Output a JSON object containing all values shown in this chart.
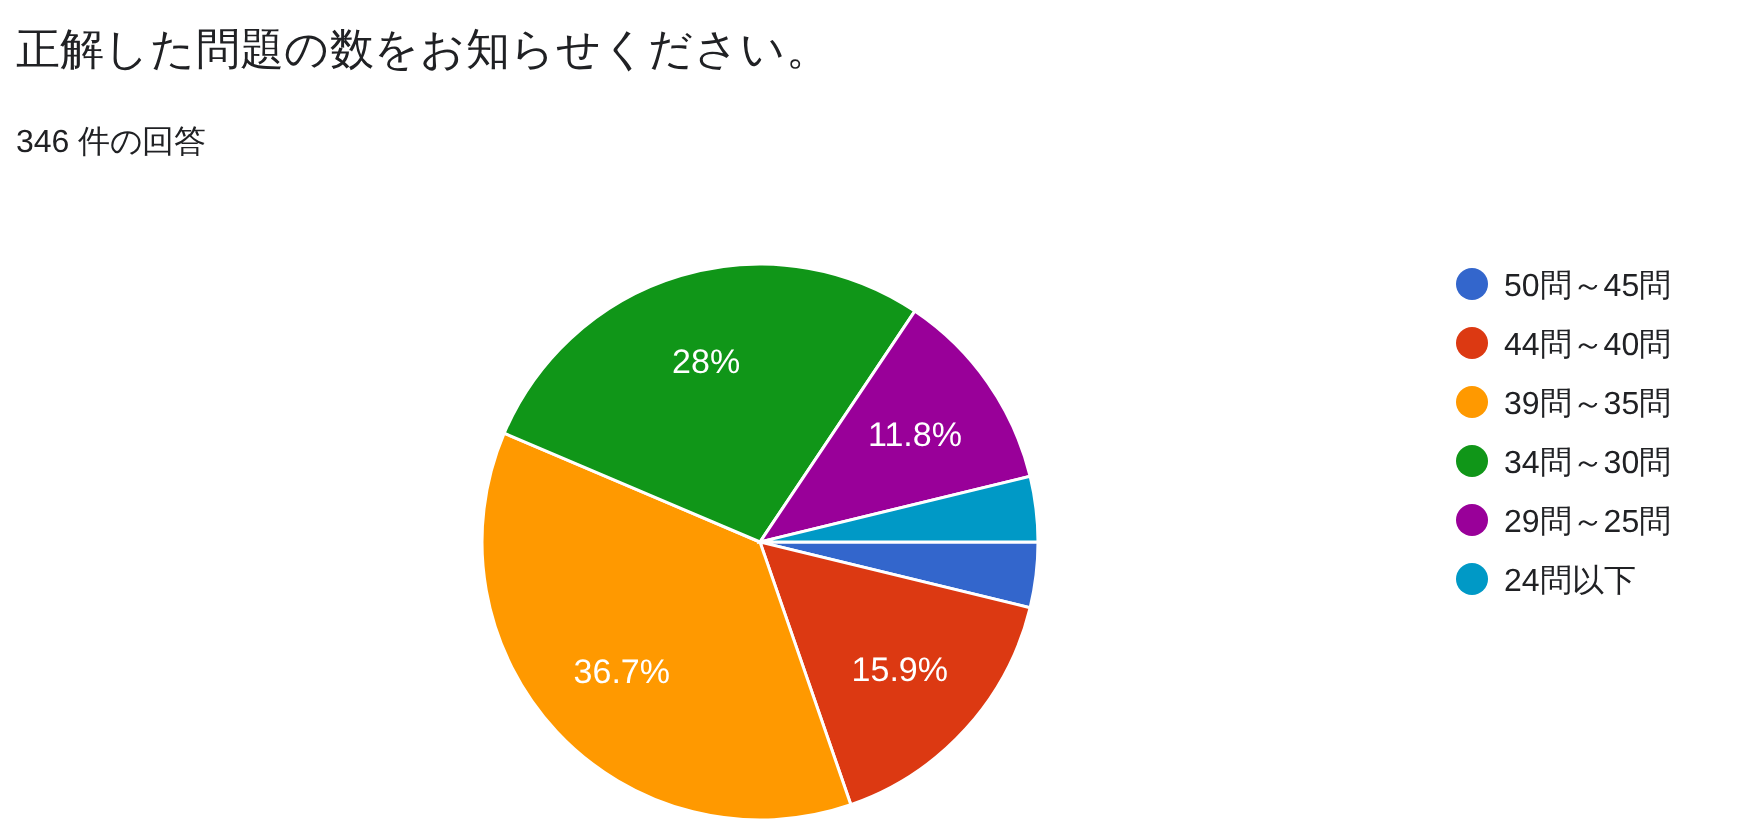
{
  "chart_data": {
    "type": "pie",
    "title": "正解した問題の数をお知らせください。",
    "subtitle": "346 件の回答",
    "categories": [
      "50問～45問",
      "44問～40問",
      "39問～35問",
      "34問～30問",
      "29問～25問",
      "24問以下"
    ],
    "values": [
      3.8,
      15.9,
      36.7,
      28,
      11.8,
      3.8
    ],
    "value_labels": [
      null,
      "15.9%",
      "36.7%",
      "28%",
      "11.8%",
      null
    ],
    "colors": [
      "#3366cc",
      "#dc3912",
      "#ff9900",
      "#109618",
      "#990099",
      "#0099c6"
    ],
    "legend": "right"
  }
}
